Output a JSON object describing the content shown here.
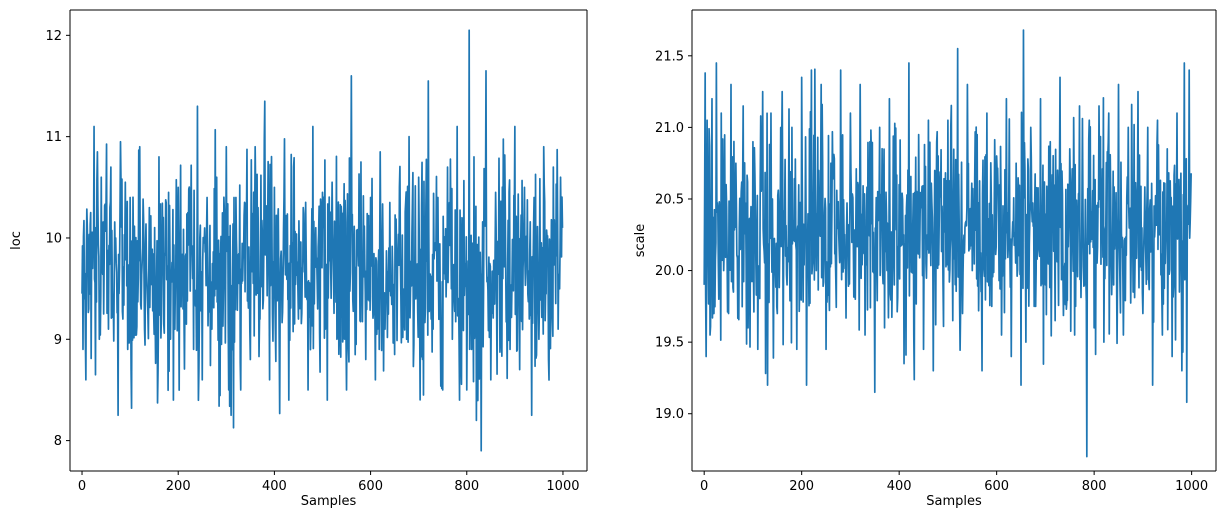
{
  "chart_data": [
    {
      "type": "line",
      "title": "",
      "xlabel": "Samples",
      "ylabel": "loc",
      "xlim": [
        -25,
        1050
      ],
      "ylim": [
        7.7,
        12.25
      ],
      "xticks": [
        0,
        200,
        400,
        600,
        800,
        1000
      ],
      "xtick_labels": [
        "0",
        "200",
        "400",
        "600",
        "800",
        "1000"
      ],
      "yticks": [
        8,
        9,
        10,
        11,
        12
      ],
      "ytick_labels": [
        "8",
        "9",
        "10",
        "11",
        "12"
      ],
      "grid": false,
      "color": "#1f77b4",
      "n_samples": 1000,
      "mean": 9.7,
      "sd": 0.5,
      "range": [
        7.9,
        12.05
      ],
      "series": [
        {
          "x": [
            0,
            2,
            5,
            8,
            11,
            14,
            18,
            22,
            25,
            28,
            32,
            36,
            40,
            45,
            50,
            55,
            60,
            65,
            70,
            75,
            80,
            85,
            90,
            95,
            100,
            110,
            120,
            130,
            140,
            150,
            160,
            170,
            180,
            190,
            200,
            210,
            220,
            230,
            240,
            250,
            260,
            270,
            280,
            290,
            300,
            310,
            320,
            330,
            340,
            350,
            360,
            370,
            380,
            390,
            400,
            410,
            420,
            430,
            440,
            450,
            460,
            470,
            480,
            490,
            500,
            510,
            520,
            530,
            540,
            550,
            560,
            570,
            580,
            590,
            600,
            610,
            620,
            630,
            640,
            650,
            660,
            670,
            680,
            690,
            700,
            710,
            720,
            730,
            740,
            750,
            760,
            770,
            780,
            785,
            790,
            800,
            805,
            810,
            815,
            820,
            830,
            840,
            850,
            860,
            870,
            880,
            890,
            900,
            910,
            920,
            930,
            935,
            940,
            950,
            960,
            970,
            980,
            990,
            995,
            999
          ],
          "y": [
            9.45,
            8.9,
            9.4,
            8.6,
            10.1,
            9.3,
            10.25,
            9.7,
            11.1,
            8.65,
            10.85,
            9.0,
            10.6,
            9.25,
            10.35,
            9.1,
            10.7,
            9.4,
            10.0,
            8.25,
            10.95,
            9.2,
            10.55,
            8.9,
            10.4,
            9.3,
            10.9,
            9.1,
            10.3,
            9.05,
            10.8,
            9.15,
            10.45,
            8.4,
            10.5,
            9.3,
            10.25,
            9.6,
            11.3,
            8.6,
            10.4,
            9.1,
            10.6,
            8.95,
            10.9,
            8.25,
            10.4,
            8.5,
            10.2,
            8.8,
            10.9,
            9.2,
            11.35,
            8.6,
            10.5,
            9.0,
            10.4,
            8.4,
            10.7,
            9.2,
            10.3,
            8.5,
            11.1,
            9.3,
            10.45,
            8.4,
            10.55,
            9.0,
            10.2,
            8.5,
            11.6,
            8.95,
            10.75,
            8.8,
            10.4,
            8.6,
            10.85,
            9.1,
            10.35,
            8.85,
            10.5,
            9.2,
            11.0,
            8.95,
            10.6,
            8.45,
            11.55,
            9.1,
            10.4,
            8.5,
            10.7,
            9.0,
            11.1,
            8.4,
            10.2,
            8.5,
            12.05,
            8.9,
            10.8,
            8.2,
            7.9,
            11.65,
            8.6,
            10.45,
            9.0,
            10.3,
            8.9,
            11.1,
            8.7,
            10.5,
            9.2,
            8.25,
            10.4,
            9.0,
            10.9,
            8.8,
            10.7,
            9.1,
            10.6,
            10.1
          ]
        }
      ]
    },
    {
      "type": "line",
      "title": "",
      "xlabel": "Samples",
      "ylabel": "scale",
      "xlim": [
        -25,
        1050
      ],
      "ylim": [
        18.6,
        21.82
      ],
      "xticks": [
        0,
        200,
        400,
        600,
        800,
        1000
      ],
      "xtick_labels": [
        "0",
        "200",
        "400",
        "600",
        "800",
        "1000"
      ],
      "yticks": [
        19.0,
        19.5,
        20.0,
        20.5,
        21.0,
        21.5
      ],
      "ytick_labels": [
        "19.0",
        "19.5",
        "20.0",
        "20.5",
        "21.0",
        "21.5"
      ],
      "grid": false,
      "color": "#1f77b4",
      "n_samples": 1000,
      "mean": 20.3,
      "sd": 0.35,
      "range": [
        18.7,
        21.68
      ],
      "series": [
        {
          "x": [
            0,
            2,
            4,
            6,
            8,
            12,
            16,
            20,
            25,
            30,
            35,
            40,
            45,
            50,
            55,
            60,
            65,
            70,
            80,
            90,
            100,
            110,
            120,
            130,
            140,
            150,
            160,
            170,
            180,
            190,
            200,
            210,
            220,
            230,
            240,
            250,
            260,
            270,
            280,
            290,
            300,
            310,
            320,
            330,
            340,
            350,
            360,
            370,
            380,
            390,
            400,
            410,
            420,
            430,
            440,
            450,
            460,
            470,
            480,
            490,
            500,
            510,
            520,
            530,
            540,
            550,
            560,
            570,
            580,
            590,
            600,
            610,
            620,
            630,
            640,
            650,
            655,
            660,
            670,
            680,
            690,
            700,
            710,
            720,
            730,
            740,
            750,
            760,
            770,
            780,
            785,
            790,
            800,
            810,
            820,
            830,
            840,
            850,
            860,
            870,
            880,
            890,
            900,
            910,
            920,
            930,
            940,
            950,
            960,
            970,
            975,
            980,
            985,
            990,
            995,
            999
          ],
          "y": [
            19.9,
            21.38,
            19.4,
            21.05,
            20.2,
            19.55,
            21.2,
            19.7,
            21.45,
            19.8,
            21.1,
            20.0,
            20.6,
            19.7,
            21.3,
            19.85,
            20.75,
            20.1,
            21.15,
            19.6,
            20.9,
            19.45,
            21.25,
            19.2,
            20.5,
            19.7,
            21.25,
            19.9,
            21.0,
            19.45,
            21.35,
            19.2,
            21.4,
            20.0,
            21.3,
            19.45,
            20.75,
            19.95,
            21.4,
            20.1,
            21.1,
            19.8,
            21.3,
            19.55,
            20.9,
            19.15,
            21.0,
            19.6,
            21.2,
            19.9,
            20.6,
            19.35,
            21.45,
            19.55,
            20.95,
            19.45,
            21.05,
            19.3,
            20.8,
            19.9,
            21.05,
            19.65,
            21.55,
            19.7,
            21.3,
            20.0,
            20.95,
            19.3,
            21.1,
            19.75,
            20.8,
            19.55,
            21.2,
            19.4,
            20.75,
            19.2,
            21.68,
            19.5,
            21.0,
            19.75,
            21.2,
            19.9,
            20.9,
            19.65,
            21.35,
            20.05,
            20.85,
            19.55,
            21.15,
            19.9,
            18.7,
            21.05,
            19.6,
            21.15,
            19.5,
            21.1,
            19.9,
            21.3,
            19.55,
            21.0,
            19.85,
            21.25,
            19.7,
            21.0,
            19.2,
            21.05,
            19.55,
            20.85,
            19.4,
            21.1,
            19.85,
            19.3,
            21.45,
            19.08,
            21.4,
            20.68
          ]
        }
      ]
    }
  ]
}
